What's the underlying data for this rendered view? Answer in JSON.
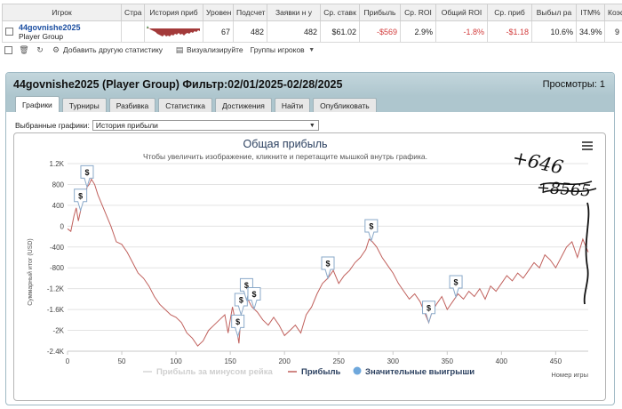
{
  "table": {
    "headers": [
      "Игрок",
      "Стра",
      "История приб",
      "Уровен",
      "Подсчет",
      "Заявки н у",
      "Ср. ставк",
      "Прибыль",
      "Ср. ROI",
      "Общий ROI",
      "Ср. приб",
      "Выбыл ра",
      "ITM%",
      "Коэф"
    ],
    "row": {
      "player_name": "44govnishe2025",
      "player_group": "Player Group",
      "level": "67",
      "count": "482",
      "entries": "482",
      "avg_stake": "$61.02",
      "profit": "-$569",
      "avg_roi": "2.9%",
      "total_roi": "-1.8%",
      "avg_profit": "-$1.18",
      "early_out": "10.6%",
      "itm": "34.9%",
      "coef": "9"
    }
  },
  "toolbar": {
    "add_stats": "Добавить другую статистику",
    "visualize": "Визуализируйте",
    "groups": "Группы игроков"
  },
  "panel": {
    "title": "44govnishe2025 (Player Group) Фильтр:02/01/2025-02/28/2025",
    "views": "Просмотры: 1",
    "tabs": [
      "Графики",
      "Турниры",
      "Разбивка",
      "Статистика",
      "Достижения",
      "Найти",
      "Опубликовать"
    ],
    "selected_label": "Выбранные графики:",
    "selected_value": "История прибыли"
  },
  "colors": {
    "line": "#c0605c",
    "accent": "#1b4ea1",
    "negative": "#d23b3b",
    "marker": "#6fa8dc"
  },
  "chart_data": {
    "type": "line",
    "title": "Общая прибыль",
    "subtitle": "Чтобы увеличить изображение, кликните и перетащите мышкой внутрь графика.",
    "xlabel": "Номер игры",
    "ylabel": "Суммарный итог (USD)",
    "xlim": [
      0,
      480
    ],
    "ylim": [
      -2400,
      1200
    ],
    "xticks": [
      0,
      50,
      100,
      150,
      200,
      250,
      300,
      350,
      400,
      450
    ],
    "yticks": [
      1200,
      800,
      400,
      0,
      -400,
      -800,
      -1200,
      -1600,
      -2000,
      -2400
    ],
    "ytick_labels": [
      "1.2K",
      "800",
      "400",
      "0",
      "-400",
      "-800",
      "-1.2K",
      "-1.6K",
      "-2K",
      "-2.4K"
    ],
    "legend": [
      "Прибыль за минусом рейка",
      "Прибыль",
      "Значительные выигрыши"
    ],
    "legend_position": "bottom",
    "series": [
      {
        "name": "Прибыль",
        "x": [
          0,
          3,
          6,
          8,
          10,
          12,
          14,
          16,
          18,
          20,
          22,
          25,
          28,
          32,
          36,
          40,
          45,
          50,
          55,
          60,
          65,
          70,
          75,
          80,
          85,
          90,
          95,
          100,
          105,
          110,
          115,
          120,
          125,
          130,
          135,
          140,
          145,
          148,
          150,
          152,
          155,
          158,
          160,
          163,
          166,
          170,
          175,
          180,
          185,
          190,
          195,
          200,
          205,
          210,
          215,
          220,
          225,
          230,
          235,
          240,
          245,
          250,
          255,
          260,
          265,
          270,
          275,
          278,
          281,
          285,
          290,
          295,
          300,
          305,
          310,
          315,
          320,
          325,
          330,
          333,
          336,
          340,
          345,
          350,
          355,
          360,
          365,
          370,
          375,
          380,
          385,
          390,
          395,
          400,
          405,
          410,
          415,
          420,
          425,
          430,
          435,
          440,
          445,
          450,
          455,
          460,
          465,
          470,
          475,
          480
        ],
        "y": [
          -50,
          -100,
          200,
          350,
          100,
          300,
          600,
          550,
          750,
          800,
          900,
          800,
          600,
          400,
          200,
          0,
          -300,
          -350,
          -500,
          -700,
          -900,
          -1000,
          -1150,
          -1350,
          -1500,
          -1600,
          -1700,
          -1750,
          -1850,
          -2050,
          -2150,
          -2300,
          -2200,
          -2000,
          -1900,
          -1800,
          -1700,
          -2050,
          -1800,
          -1550,
          -1850,
          -2250,
          -1700,
          -1450,
          -1400,
          -1550,
          -1650,
          -1800,
          -1900,
          -1750,
          -1900,
          -2100,
          -2000,
          -1900,
          -2050,
          -1700,
          -1550,
          -1300,
          -1100,
          -1000,
          -850,
          -1100,
          -950,
          -850,
          -700,
          -600,
          -450,
          -250,
          -300,
          -400,
          -600,
          -750,
          -900,
          -1100,
          -1250,
          -1400,
          -1300,
          -1450,
          -1700,
          -1850,
          -1650,
          -1500,
          -1350,
          -1600,
          -1450,
          -1300,
          -1400,
          -1250,
          -1350,
          -1200,
          -1400,
          -1150,
          -1250,
          -1100,
          -950,
          -1050,
          -900,
          -1000,
          -850,
          -700,
          -800,
          -550,
          -650,
          -800,
          -600,
          -400,
          -300,
          -600,
          -250,
          -500
        ],
        "color": "#c0605c"
      }
    ],
    "big_win_markers": [
      12,
      18,
      157,
      160,
      165,
      172,
      240,
      280,
      333,
      358
    ]
  },
  "annotation": {
    "text_top": "+646",
    "text_crossed": "+8565"
  }
}
